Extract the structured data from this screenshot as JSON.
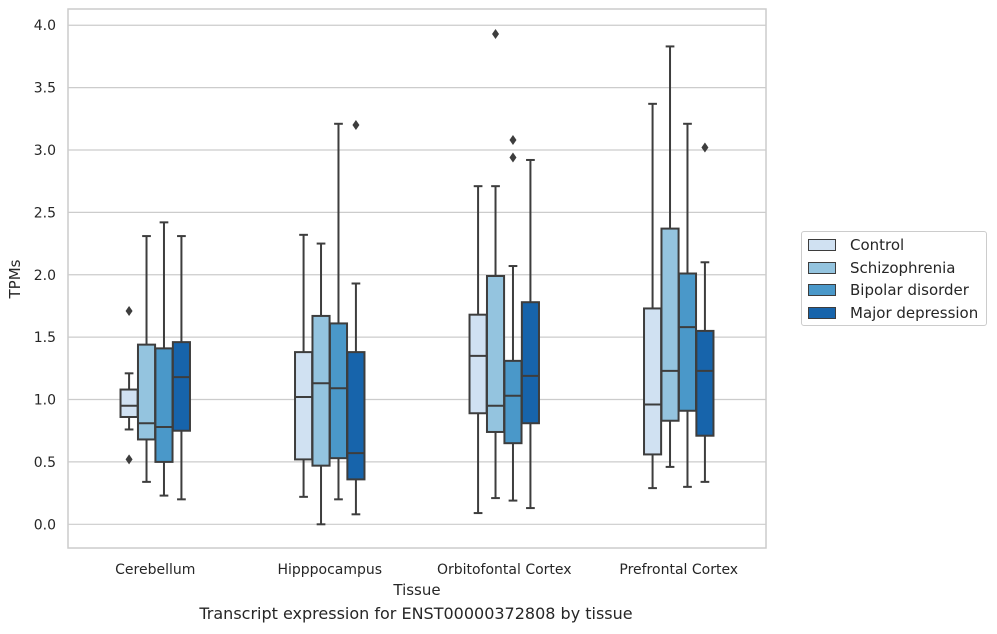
{
  "chart_data": {
    "type": "box",
    "caption": "Transcript expression for ENST00000372808 by tissue",
    "xlabel": "Tissue",
    "ylabel": "TPMs",
    "ylim": [
      -0.19,
      4.13
    ],
    "yticks": [
      "0.0",
      "0.5",
      "1.0",
      "1.5",
      "2.0",
      "2.5",
      "3.0",
      "3.5",
      "4.0"
    ],
    "grid": true,
    "legend_position": "right",
    "categories": [
      "Cerebellum",
      "Hipppocampus",
      "Orbitofontal Cortex",
      "Prefrontal Cortex"
    ],
    "series": [
      {
        "name": "Control",
        "color": "#d0e1f2",
        "boxes": [
          {
            "whislo": 0.76,
            "q1": 0.86,
            "med": 0.95,
            "q3": 1.08,
            "whishi": 1.21,
            "fliers": [
              0.52,
              1.71
            ]
          },
          {
            "whislo": 0.22,
            "q1": 0.52,
            "med": 1.02,
            "q3": 1.38,
            "whishi": 2.32,
            "fliers": []
          },
          {
            "whislo": 0.09,
            "q1": 0.89,
            "med": 1.35,
            "q3": 1.68,
            "whishi": 2.71,
            "fliers": []
          },
          {
            "whislo": 0.29,
            "q1": 0.56,
            "med": 0.96,
            "q3": 1.73,
            "whishi": 3.37,
            "fliers": []
          }
        ]
      },
      {
        "name": "Schizophrenia",
        "color": "#94c4df",
        "boxes": [
          {
            "whislo": 0.34,
            "q1": 0.68,
            "med": 0.81,
            "q3": 1.44,
            "whishi": 2.31,
            "fliers": []
          },
          {
            "whislo": 0.0,
            "q1": 0.47,
            "med": 1.13,
            "q3": 1.67,
            "whishi": 2.25,
            "fliers": []
          },
          {
            "whislo": 0.21,
            "q1": 0.74,
            "med": 0.95,
            "q3": 1.99,
            "whishi": 2.71,
            "fliers": [
              3.93
            ]
          },
          {
            "whislo": 0.46,
            "q1": 0.83,
            "med": 1.23,
            "q3": 2.37,
            "whishi": 3.83,
            "fliers": []
          }
        ]
      },
      {
        "name": "Bipolar disorder",
        "color": "#4a98c9",
        "boxes": [
          {
            "whislo": 0.23,
            "q1": 0.5,
            "med": 0.78,
            "q3": 1.41,
            "whishi": 2.42,
            "fliers": []
          },
          {
            "whislo": 0.2,
            "q1": 0.53,
            "med": 1.09,
            "q3": 1.61,
            "whishi": 3.21,
            "fliers": []
          },
          {
            "whislo": 0.19,
            "q1": 0.65,
            "med": 1.03,
            "q3": 1.31,
            "whishi": 2.07,
            "fliers": [
              2.94,
              3.08
            ]
          },
          {
            "whislo": 0.3,
            "q1": 0.91,
            "med": 1.58,
            "q3": 2.01,
            "whishi": 3.21,
            "fliers": []
          }
        ]
      },
      {
        "name": "Major depression",
        "color": "#1764ab",
        "boxes": [
          {
            "whislo": 0.2,
            "q1": 0.75,
            "med": 1.18,
            "q3": 1.46,
            "whishi": 2.31,
            "fliers": []
          },
          {
            "whislo": 0.08,
            "q1": 0.36,
            "med": 0.57,
            "q3": 1.38,
            "whishi": 1.93,
            "fliers": [
              3.2
            ]
          },
          {
            "whislo": 0.13,
            "q1": 0.81,
            "med": 1.19,
            "q3": 1.78,
            "whishi": 2.92,
            "fliers": []
          },
          {
            "whislo": 0.34,
            "q1": 0.71,
            "med": 1.23,
            "q3": 1.55,
            "whishi": 2.1,
            "fliers": [
              3.02
            ]
          }
        ]
      }
    ]
  }
}
